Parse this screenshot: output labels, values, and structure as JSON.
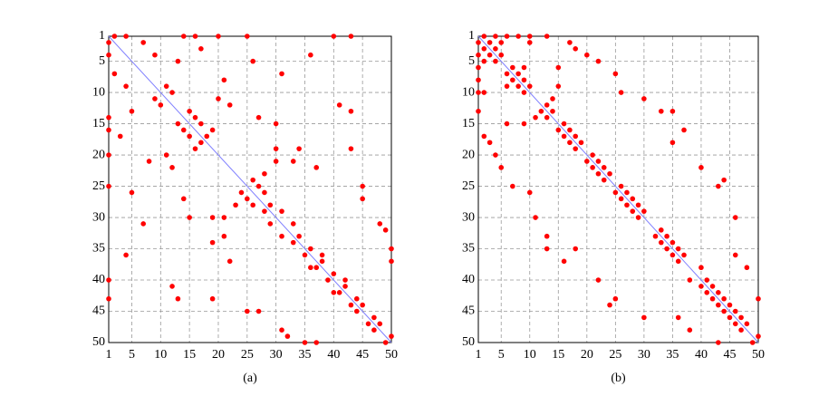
{
  "chart_data": [
    {
      "type": "scatter",
      "caption": "(a)",
      "xlim": [
        1,
        50
      ],
      "ylim": [
        50,
        1
      ],
      "xticks": [
        1,
        5,
        10,
        15,
        20,
        25,
        30,
        35,
        40,
        45,
        50
      ],
      "yticks": [
        1,
        5,
        10,
        15,
        20,
        25,
        30,
        35,
        40,
        45,
        50
      ],
      "grid": true,
      "series": [
        {
          "color": "#ff0000",
          "x": [
            1,
            2,
            1,
            4,
            1,
            14,
            1,
            16,
            1,
            20,
            1,
            25,
            1,
            40,
            1,
            43,
            2,
            7,
            3,
            17,
            4,
            9,
            4,
            36,
            5,
            13,
            5,
            26,
            7,
            31,
            8,
            21,
            9,
            11,
            10,
            12,
            11,
            20,
            12,
            22,
            13,
            15,
            14,
            16,
            15,
            17,
            16,
            19,
            17,
            18,
            19,
            30,
            21,
            33,
            24,
            26,
            25,
            27,
            26,
            28,
            23,
            28,
            28,
            29,
            29,
            31,
            31,
            33,
            33,
            34,
            35,
            36,
            36,
            38,
            37,
            38,
            39,
            40,
            40,
            42,
            41,
            42,
            43,
            44,
            44,
            45,
            46,
            47,
            47,
            48,
            49,
            50,
            31,
            48,
            32,
            49,
            35,
            50,
            37,
            50,
            25,
            45,
            27,
            45,
            12,
            41,
            13,
            43,
            15,
            30,
            14,
            27,
            22,
            37,
            19,
            43,
            21,
            30,
            34,
            19
          ],
          "y": [
            2,
            1,
            4,
            1,
            14,
            1,
            16,
            1,
            20,
            1,
            25,
            1,
            40,
            1,
            43,
            1,
            7,
            2,
            17,
            3,
            9,
            4,
            36,
            4,
            13,
            5,
            26,
            5,
            31,
            7,
            21,
            8,
            11,
            9,
            12,
            10,
            20,
            11,
            22,
            12,
            15,
            13,
            16,
            14,
            17,
            15,
            19,
            16,
            18,
            17,
            30,
            19,
            33,
            21,
            26,
            24,
            27,
            25,
            28,
            26,
            28,
            23,
            29,
            28,
            31,
            29,
            33,
            31,
            34,
            33,
            36,
            35,
            38,
            36,
            38,
            37,
            40,
            39,
            42,
            40,
            42,
            41,
            44,
            43,
            45,
            44,
            47,
            46,
            48,
            47,
            50,
            49,
            48,
            31,
            49,
            32,
            50,
            35,
            50,
            37,
            45,
            25,
            45,
            27,
            41,
            12,
            43,
            13,
            30,
            15,
            27,
            14,
            37,
            22,
            43,
            19,
            30,
            21,
            19,
            34
          ]
        },
        {
          "type": "line",
          "color": "#8080ff",
          "x": [
            1,
            50
          ],
          "y": [
            1,
            50
          ]
        }
      ]
    },
    {
      "type": "scatter",
      "caption": "(b)",
      "xlim": [
        1,
        50
      ],
      "ylim": [
        50,
        1
      ],
      "xticks": [
        1,
        5,
        10,
        15,
        20,
        25,
        30,
        35,
        40,
        45,
        50
      ],
      "yticks": [
        1,
        5,
        10,
        15,
        20,
        25,
        30,
        35,
        40,
        45,
        50
      ],
      "grid": true,
      "series": [
        {
          "color": "#ff0000",
          "x": [
            1,
            2,
            1,
            4,
            1,
            6,
            1,
            8,
            1,
            10,
            1,
            13,
            2,
            3,
            2,
            5,
            3,
            4,
            4,
            5,
            2,
            10,
            6,
            7,
            7,
            8,
            8,
            9,
            9,
            10,
            6,
            9,
            6,
            15,
            9,
            15,
            2,
            17,
            3,
            18,
            4,
            20,
            5,
            22,
            7,
            25,
            12,
            13,
            11,
            14,
            13,
            14,
            15,
            16,
            16,
            17,
            17,
            18,
            18,
            19,
            20,
            21,
            21,
            22,
            22,
            23,
            23,
            24,
            25,
            26,
            26,
            27,
            27,
            28,
            28,
            29,
            29,
            30,
            32,
            33,
            33,
            34,
            34,
            35,
            35,
            36,
            36,
            37,
            38,
            40,
            40,
            41,
            41,
            42,
            42,
            43,
            43,
            44,
            44,
            45,
            45,
            46,
            46,
            47,
            47,
            48,
            49,
            50,
            10,
            26,
            11,
            30,
            13,
            35,
            16,
            37,
            22,
            40,
            24,
            44,
            13,
            33,
            18,
            35,
            25,
            43,
            30,
            46,
            36,
            46,
            38,
            48,
            43,
            50
          ],
          "y": [
            2,
            1,
            4,
            1,
            6,
            1,
            8,
            1,
            10,
            1,
            13,
            1,
            3,
            2,
            5,
            2,
            4,
            3,
            5,
            4,
            10,
            2,
            7,
            6,
            8,
            7,
            9,
            8,
            10,
            9,
            9,
            6,
            15,
            6,
            15,
            9,
            17,
            2,
            18,
            3,
            20,
            4,
            22,
            5,
            25,
            7,
            13,
            12,
            14,
            11,
            14,
            13,
            16,
            15,
            17,
            16,
            18,
            17,
            19,
            18,
            21,
            20,
            22,
            21,
            23,
            22,
            24,
            23,
            26,
            25,
            27,
            26,
            28,
            27,
            29,
            28,
            30,
            29,
            33,
            32,
            34,
            33,
            35,
            34,
            36,
            35,
            37,
            36,
            40,
            38,
            41,
            40,
            42,
            41,
            43,
            42,
            44,
            43,
            45,
            44,
            46,
            45,
            47,
            46,
            48,
            47,
            50,
            49,
            26,
            10,
            30,
            11,
            35,
            13,
            37,
            16,
            40,
            22,
            44,
            24,
            33,
            13,
            35,
            18,
            43,
            25,
            46,
            30,
            46,
            36,
            48,
            38,
            50,
            43
          ]
        },
        {
          "type": "line",
          "color": "#8080ff",
          "x": [
            1,
            50
          ],
          "y": [
            1,
            50
          ]
        }
      ]
    }
  ]
}
